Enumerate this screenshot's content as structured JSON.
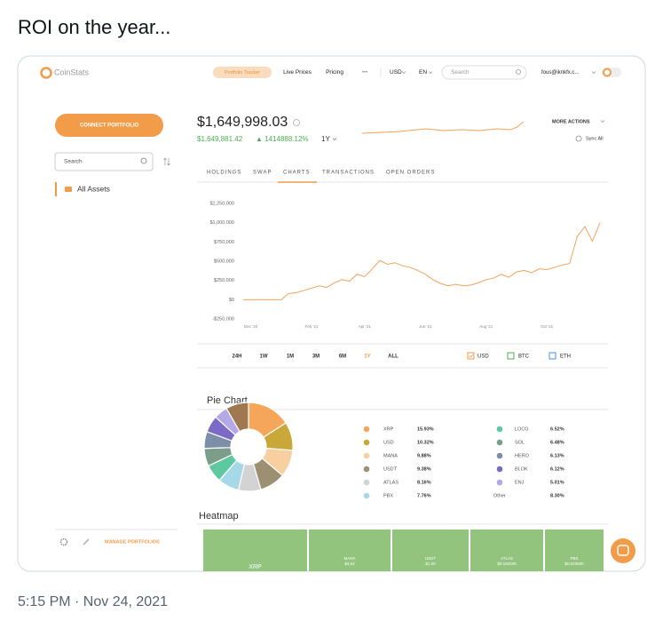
{
  "tweet": {
    "text": "ROI on the year...",
    "timestamp": "5:15 PM · Nov 24, 2021"
  },
  "nav": {
    "logo": "CoinStats",
    "active": "Portfolio Tracker",
    "items": [
      "Live Prices",
      "Pricing",
      "•••",
      "USD",
      "EN"
    ],
    "search": "Search",
    "account": "fous@iknkfx.c..."
  },
  "sidebar": {
    "connect": "CONNECT PORTFOLIO",
    "search": "Search",
    "all_assets": "All Assets",
    "manage": "MANAGE PORTFOLIOS"
  },
  "portfolio": {
    "total": "$1,649,998.03",
    "secondary": "$1,649,881.42",
    "change": "▲ 1414888.12%",
    "period": "1Y",
    "more_actions": "MORE ACTIONS",
    "sync": "Sync All"
  },
  "tabs": [
    "HOLDINGS",
    "SWAP",
    "CHARTS",
    "TRANSACTIONS",
    "OPEN ORDERS"
  ],
  "ranges": [
    "24H",
    "1W",
    "1M",
    "3M",
    "6M",
    "1Y",
    "ALL"
  ],
  "currencies": [
    "USD",
    "BTC",
    "ETH"
  ],
  "heatmap": {
    "title": "Heatmap",
    "cells": [
      {
        "name": "XRP"
      },
      {
        "name": "MANA",
        "price": "$4.54"
      },
      {
        "name": "USDT",
        "price": "$1.00"
      },
      {
        "name": "ATLAS",
        "price": "$0.182039"
      },
      {
        "name": "PBX",
        "price": "$0.023600"
      }
    ]
  },
  "chart_data": [
    {
      "type": "line",
      "color": "#f2a25c",
      "categories": [
        null,
        "Dec '20",
        null,
        null,
        null,
        null,
        null,
        null,
        null,
        "Feb '21",
        null,
        null,
        null,
        null,
        null,
        null,
        "Apr '21",
        null,
        null,
        null,
        null,
        null,
        null,
        null,
        "Jun '21",
        null,
        null,
        null,
        null,
        null,
        null,
        null,
        "Aug '21",
        null,
        null,
        null,
        null,
        null,
        null,
        null,
        "Oct '21",
        null,
        null,
        null,
        null,
        null,
        null,
        null
      ],
      "values": [
        0,
        0,
        0,
        0,
        0,
        0,
        80000,
        90000,
        120000,
        150000,
        180000,
        160000,
        220000,
        260000,
        240000,
        330000,
        300000,
        400000,
        510000,
        460000,
        480000,
        440000,
        420000,
        380000,
        330000,
        260000,
        210000,
        180000,
        200000,
        180000,
        190000,
        220000,
        260000,
        280000,
        330000,
        290000,
        360000,
        380000,
        350000,
        400000,
        390000,
        420000,
        450000,
        470000,
        820000,
        950000,
        760000,
        1000000
      ],
      "ylim": [
        -250000,
        1250000
      ],
      "yticks": [
        {
          "value": -250000,
          "label": "-$250,000"
        },
        {
          "value": 0,
          "label": "$0"
        },
        {
          "value": 250000,
          "label": "$250,000"
        },
        {
          "value": 500000,
          "label": "$500,000"
        },
        {
          "value": 750000,
          "label": "$750,000"
        },
        {
          "value": 1000000,
          "label": "$1,000,000"
        },
        {
          "value": 1250000,
          "label": "$1,250,000"
        }
      ],
      "grid": false
    },
    {
      "type": "pie",
      "title": "Pie Chart",
      "categories": [
        "XRP",
        "USD",
        "MANA",
        "USDT",
        "ATLAS",
        "PBX",
        "LOCG",
        "SOL",
        "HERO",
        "BLOK",
        "ENJ",
        "Other"
      ],
      "values": [
        15.93,
        10.32,
        9.88,
        9.38,
        8.16,
        7.76,
        6.52,
        6.48,
        6.13,
        6.12,
        5.01,
        8.3
      ],
      "value_labels": [
        "15.93%",
        "10.32%",
        "9.88%",
        "9.38%",
        "8.16%",
        "7.76%",
        "6.52%",
        "6.48%",
        "6.13%",
        "6.12%",
        "5.01%",
        "8.30%"
      ],
      "colors": [
        "#f5a65b",
        "#c9a83a",
        "#f7cfa0",
        "#9c8f72",
        "#d3d3d3",
        "#a7d8e8",
        "#5ec9a0",
        "#7a9e8a",
        "#7c8fa8",
        "#7b6bc7",
        "#b4a8e6",
        "#a07850"
      ]
    }
  ]
}
